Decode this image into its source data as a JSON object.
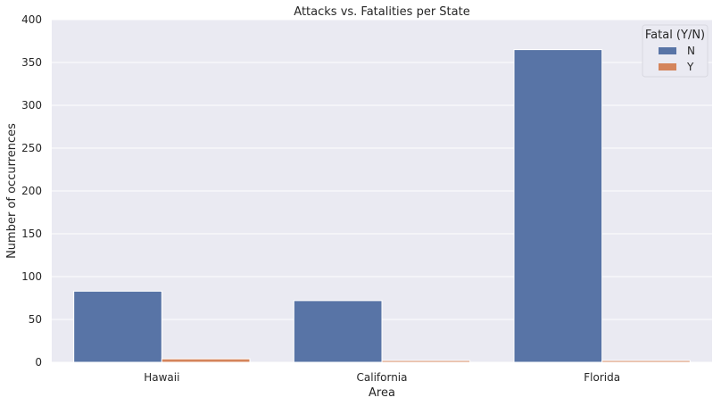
{
  "chart_data": {
    "type": "bar",
    "title": "Attacks vs. Fatalities per State",
    "xlabel": "Area",
    "ylabel": "Number of occurrences",
    "categories": [
      "Hawaii",
      "California",
      "Florida"
    ],
    "series": [
      {
        "name": "N",
        "values": [
          83,
          72,
          365
        ],
        "color": "#5874a6"
      },
      {
        "name": "Y",
        "values": [
          4,
          2,
          2
        ],
        "color": "#d4845b"
      }
    ],
    "ylim": [
      0,
      400
    ],
    "yticks": [
      0,
      50,
      100,
      150,
      200,
      250,
      300,
      350,
      400
    ],
    "grid": true,
    "legend": {
      "title": "Fatal (Y/N)",
      "placement": "top-right"
    },
    "background": "#eaeaf2"
  }
}
